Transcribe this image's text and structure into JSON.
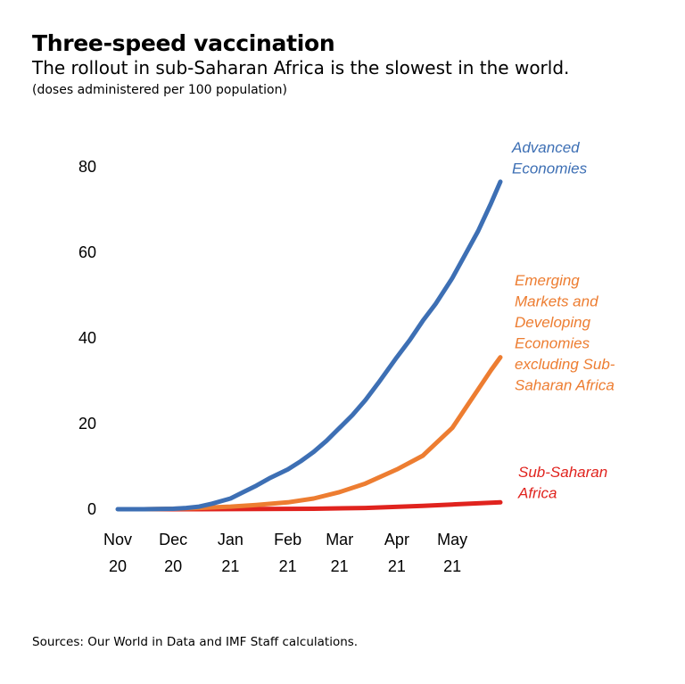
{
  "header": {
    "title": "Three-speed vaccination",
    "subtitle": "The rollout in sub-Saharan Africa is the slowest in the world.",
    "note": "(doses administered per 100 population)"
  },
  "footer": {
    "source": "Sources: Our World in Data and IMF Staff calculations."
  },
  "chart_data": {
    "type": "line",
    "title": "Three-speed vaccination",
    "subtitle": "The rollout in sub-Saharan Africa is the slowest in the world.",
    "ylabel": "(doses administered per 100 population)",
    "ylim": [
      0,
      80
    ],
    "yticks": [
      0,
      20,
      40,
      60,
      80
    ],
    "x_ticks": [
      {
        "date": "2020-11-01",
        "line1": "Nov",
        "line2": "20"
      },
      {
        "date": "2020-12-01",
        "line1": "Dec",
        "line2": "20"
      },
      {
        "date": "2021-01-01",
        "line1": "Jan",
        "line2": "21"
      },
      {
        "date": "2021-02-01",
        "line1": "Feb",
        "line2": "21"
      },
      {
        "date": "2021-03-01",
        "line1": "Mar",
        "line2": "21"
      },
      {
        "date": "2021-04-01",
        "line1": "Apr",
        "line2": "21"
      },
      {
        "date": "2021-05-01",
        "line1": "May",
        "line2": "21"
      }
    ],
    "xlim": [
      "2020-11-01",
      "2021-05-27"
    ],
    "grid": false,
    "series": [
      {
        "name": "Advanced Economies",
        "label_lines": [
          "Advanced",
          "Economies"
        ],
        "color": "#3d6fb4",
        "points": [
          [
            "2020-11-01",
            0
          ],
          [
            "2020-11-15",
            0
          ],
          [
            "2020-12-01",
            0.1
          ],
          [
            "2020-12-08",
            0.3
          ],
          [
            "2020-12-15",
            0.6
          ],
          [
            "2020-12-22",
            1.3
          ],
          [
            "2021-01-01",
            2.5
          ],
          [
            "2021-01-08",
            4.0
          ],
          [
            "2021-01-15",
            5.5
          ],
          [
            "2021-01-22",
            7.2
          ],
          [
            "2021-02-01",
            9.3
          ],
          [
            "2021-02-08",
            11.2
          ],
          [
            "2021-02-15",
            13.4
          ],
          [
            "2021-02-22",
            16.0
          ],
          [
            "2021-03-01",
            19.0
          ],
          [
            "2021-03-08",
            22.0
          ],
          [
            "2021-03-15",
            25.5
          ],
          [
            "2021-03-22",
            29.5
          ],
          [
            "2021-04-01",
            35.5
          ],
          [
            "2021-04-08",
            39.5
          ],
          [
            "2021-04-15",
            44.0
          ],
          [
            "2021-04-22",
            48.0
          ],
          [
            "2021-05-01",
            54.0
          ],
          [
            "2021-05-08",
            59.5
          ],
          [
            "2021-05-15",
            65.0
          ],
          [
            "2021-05-22",
            71.5
          ],
          [
            "2021-05-27",
            76.5
          ]
        ]
      },
      {
        "name": "Emerging Markets and Developing Economies excluding Sub-Saharan Africa",
        "label_lines": [
          "Emerging",
          "Markets and",
          "Developing",
          "Economies",
          "excluding Sub-",
          "Saharan Africa"
        ],
        "color": "#ed7d31",
        "points": [
          [
            "2020-11-15",
            0
          ],
          [
            "2020-12-01",
            0.1
          ],
          [
            "2020-12-15",
            0.3
          ],
          [
            "2021-01-01",
            0.6
          ],
          [
            "2021-01-15",
            1.0
          ],
          [
            "2021-02-01",
            1.6
          ],
          [
            "2021-02-15",
            2.5
          ],
          [
            "2021-03-01",
            4.0
          ],
          [
            "2021-03-15",
            6.0
          ],
          [
            "2021-04-01",
            9.3
          ],
          [
            "2021-04-15",
            12.5
          ],
          [
            "2021-05-01",
            19.0
          ],
          [
            "2021-05-08",
            23.5
          ],
          [
            "2021-05-15",
            28.0
          ],
          [
            "2021-05-22",
            32.5
          ],
          [
            "2021-05-27",
            35.5
          ]
        ]
      },
      {
        "name": "Sub-Saharan Africa",
        "label_lines": [
          "Sub-Saharan",
          "Africa"
        ],
        "color": "#e0231e",
        "points": [
          [
            "2020-11-15",
            0
          ],
          [
            "2020-12-15",
            0
          ],
          [
            "2021-01-15",
            0.05
          ],
          [
            "2021-02-15",
            0.1
          ],
          [
            "2021-03-15",
            0.3
          ],
          [
            "2021-04-15",
            0.8
          ],
          [
            "2021-05-01",
            1.1
          ],
          [
            "2021-05-27",
            1.6
          ]
        ]
      }
    ]
  }
}
